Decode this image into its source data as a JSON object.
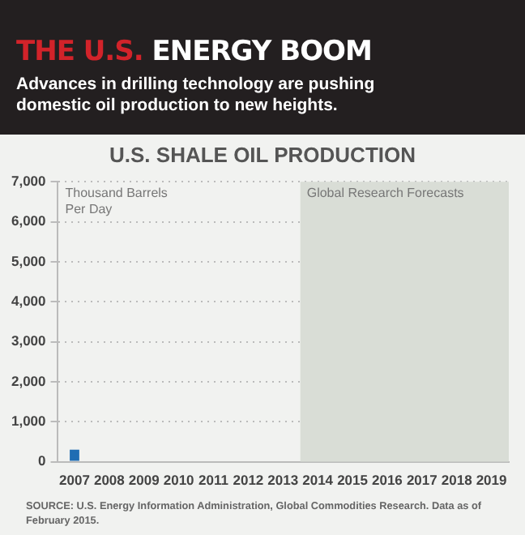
{
  "chart_data": {
    "type": "bar",
    "title": "THE U.S. ENERGY BOOM",
    "subtitle": "Advances in drilling technology are pushing domestic oil production to new heights.",
    "annotations": [
      "U.S. SHALE OIL PRODUCTION",
      "SOURCE: U.S. Energy Information Administration, Global Commodities Research. Data as of February 2015."
    ],
    "ylabel": "Thousand Barrels Per Day",
    "categories": [
      "2007",
      "2008",
      "2009",
      "2010",
      "2011",
      "2012",
      "2013",
      "2014",
      "2015",
      "2016",
      "2017",
      "2018",
      "2019"
    ],
    "series": [
      {
        "color": "#1f6db3",
        "values": [
          300,
          null,
          null,
          null,
          null,
          null,
          null,
          null,
          null,
          null,
          null,
          null,
          null
        ]
      }
    ],
    "ylim": [
      0,
      7000
    ],
    "yticks": [
      {
        "value": 0,
        "label": "0"
      },
      {
        "value": 1000,
        "label": "1,000"
      },
      {
        "value": 2000,
        "label": "2,000"
      },
      {
        "value": 3000,
        "label": "3,000"
      },
      {
        "value": 4000,
        "label": "4,000"
      },
      {
        "value": 5000,
        "label": "5,000"
      },
      {
        "value": 6000,
        "label": "6,000"
      },
      {
        "value": 7000,
        "label": "7,000"
      }
    ],
    "grid": "y",
    "legend": false,
    "bands": [
      {
        "axis": "x",
        "from": "2014",
        "to": "2019",
        "label": "Global Research Forecasts",
        "color": "#d9ddd6"
      }
    ]
  }
}
